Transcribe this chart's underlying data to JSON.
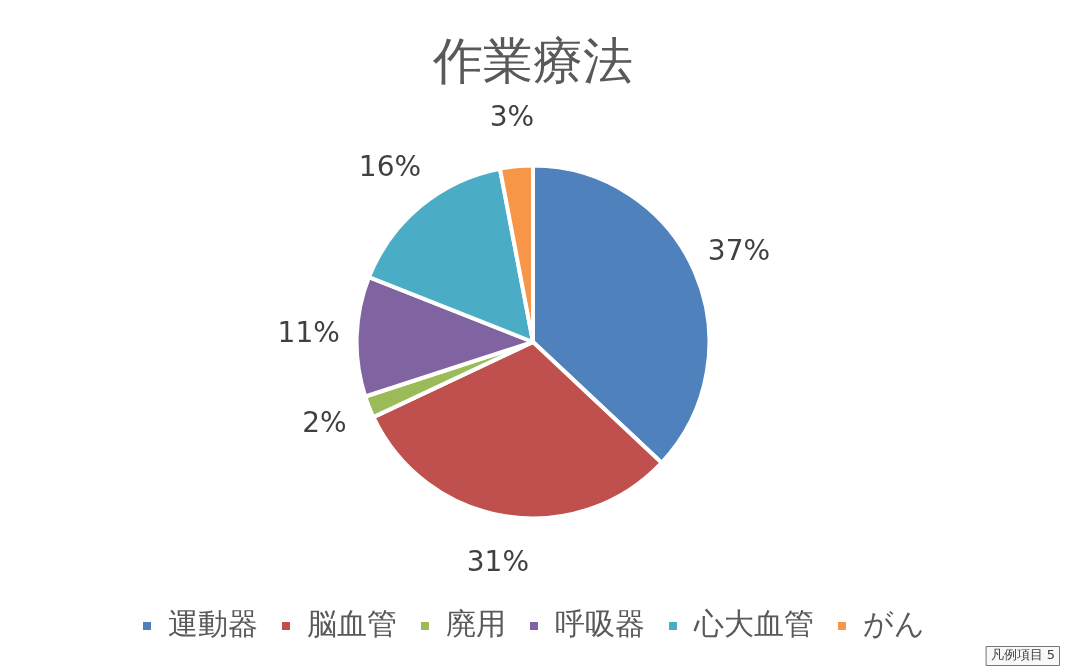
{
  "chart_data": {
    "type": "pie",
    "title": "作業療法",
    "categories": [
      "運動器",
      "脳血管",
      "廃用",
      "呼吸器",
      "心大血管",
      "がん"
    ],
    "values": [
      37,
      31,
      2,
      11,
      16,
      3
    ],
    "colors": [
      "#4f81bd",
      "#c0504d",
      "#9bbb59",
      "#8064a2",
      "#4bacc6",
      "#f79646"
    ],
    "value_labels": [
      "37%",
      "31%",
      "2%",
      "11%",
      "16%",
      "3%"
    ],
    "legend": "bottom",
    "annotations": [
      "凡例項目 5"
    ]
  }
}
